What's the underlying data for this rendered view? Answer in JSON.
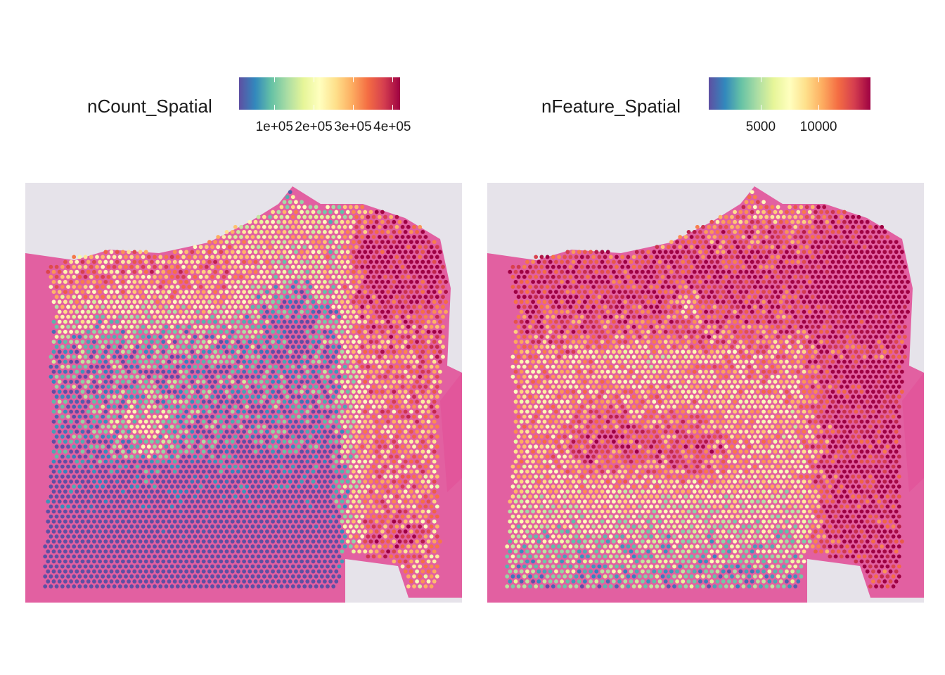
{
  "chart_data": [
    {
      "type": "spatial-scatter",
      "legend": {
        "title": "nCount_Spatial",
        "placement": "top",
        "ticks": [
          100000,
          200000,
          300000,
          400000
        ],
        "tick_labels": [
          "1e+05",
          "2e+05",
          "3e+05",
          "4e+05"
        ],
        "range": [
          10000,
          420000
        ],
        "palette": "Spectral (reversed)"
      },
      "background": "H&E tissue image",
      "pattern": "low counts (blue) across the central and lower-left tissue; high counts (yellow-red) along the upper lobes and right side"
    },
    {
      "type": "spatial-scatter",
      "legend": {
        "title": "nFeature_Spatial",
        "placement": "top",
        "ticks": [
          5000,
          10000
        ],
        "tick_labels": [
          "5000",
          "10000"
        ],
        "range": [
          500,
          14500
        ],
        "palette": "Spectral (reversed)"
      },
      "background": "H&E tissue image",
      "pattern": "high feature counts (red) across the upper lobes and right side; moderate (yellow) in the center; lower (green) in the bottom-left"
    }
  ],
  "colors": {
    "spectral": [
      "#5e4fa2",
      "#3288bd",
      "#66c2a5",
      "#abdda4",
      "#e6f598",
      "#ffffbf",
      "#fee08b",
      "#fdae61",
      "#f46d43",
      "#d53e4f",
      "#9e0142"
    ],
    "tissue_pink": "#e2559a",
    "slide_background": "#e6e3ea"
  }
}
